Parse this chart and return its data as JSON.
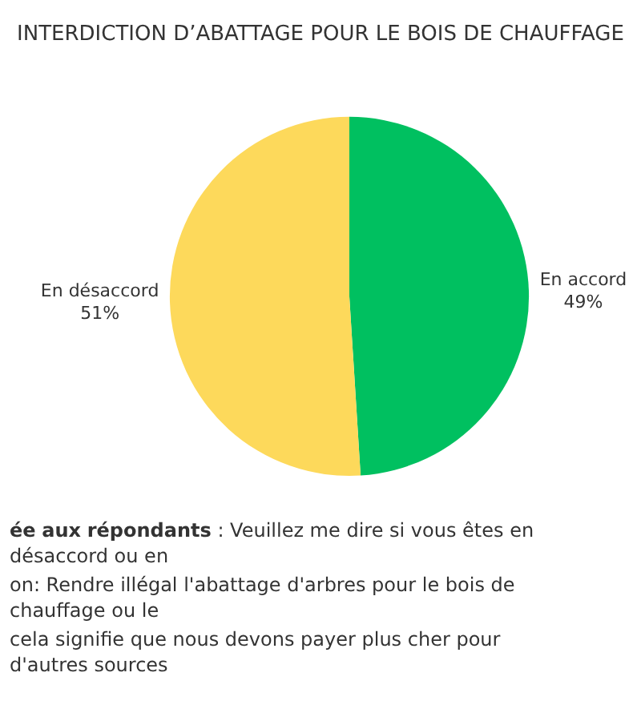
{
  "chart_data": {
    "type": "pie",
    "title": "INTERDICTION D’ABATTAGE POUR LE BOIS DE CHAUFFAGE",
    "categories": [
      "En accord",
      "En désaccord"
    ],
    "values": [
      49,
      51
    ],
    "value_labels": [
      "49%",
      "51%"
    ],
    "colors": [
      "#00c060",
      "#fdd95b"
    ],
    "annotations": [
      "ée aux répondants",
      " : Veuillez me dire si vous êtes en désaccord ou en",
      "on:  Rendre illégal l'abattage d'arbres pour le bois de chauffage ou le",
      "cela signifie que nous devons payer plus cher pour d'autres sources"
    ]
  }
}
